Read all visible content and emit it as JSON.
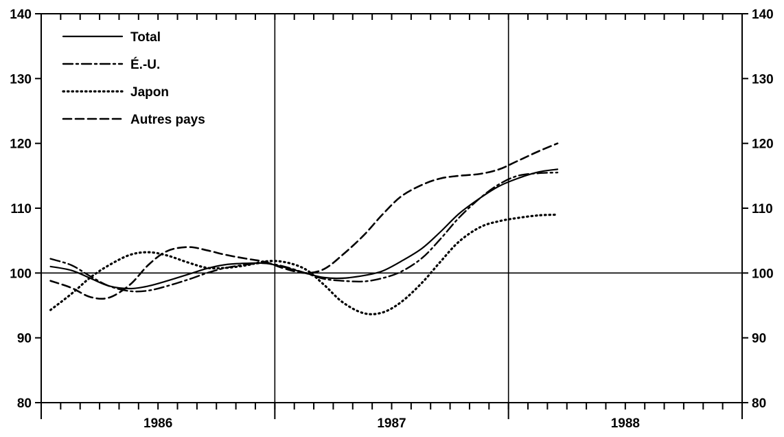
{
  "chart_data": {
    "type": "line",
    "title": "",
    "xlabel": "",
    "ylabel": "",
    "ylim": [
      80,
      140
    ],
    "xlim": [
      1986.0,
      1989.0
    ],
    "grid": false,
    "legend_position": "top-left",
    "yticks": [
      80,
      90,
      100,
      110,
      120,
      130,
      140
    ],
    "year_labels": [
      {
        "label": "1986",
        "x": 1986.5
      },
      {
        "label": "1987",
        "x": 1987.5
      },
      {
        "label": "1988",
        "x": 1988.5
      }
    ],
    "vertical_lines": [
      1987.0,
      1988.0
    ],
    "reference_line": 100,
    "series": [
      {
        "name": "Total",
        "style": "solid",
        "x": [
          1986.04,
          1986.13,
          1986.21,
          1986.29,
          1986.38,
          1986.46,
          1986.54,
          1986.63,
          1986.71,
          1986.79,
          1986.88,
          1986.96,
          1987.04,
          1987.13,
          1987.21,
          1987.29,
          1987.38,
          1987.46,
          1987.54,
          1987.63,
          1987.71,
          1987.79,
          1987.88,
          1987.96,
          1988.04,
          1988.13,
          1988.21
        ],
        "values": [
          101,
          100.4,
          99.2,
          98,
          97.6,
          98,
          98.8,
          99.8,
          100.7,
          101.3,
          101.5,
          101.5,
          100.9,
          100,
          99.3,
          99.2,
          99.6,
          100.3,
          101.8,
          103.8,
          106.4,
          109.2,
          111.6,
          113.4,
          114.6,
          115.6,
          116
        ]
      },
      {
        "name": "É.-U.",
        "style": "dashdot",
        "x": [
          1986.04,
          1986.13,
          1986.21,
          1986.29,
          1986.38,
          1986.46,
          1986.54,
          1986.63,
          1986.71,
          1986.79,
          1986.88,
          1986.96,
          1987.04,
          1987.13,
          1987.21,
          1987.29,
          1987.38,
          1987.46,
          1987.54,
          1987.63,
          1987.71,
          1987.79,
          1987.88,
          1987.96,
          1988.04,
          1988.13,
          1988.21
        ],
        "values": [
          102.2,
          101.2,
          99.5,
          98,
          97.2,
          97.3,
          98,
          99,
          100,
          100.8,
          101.3,
          101.5,
          101,
          100,
          99.1,
          98.8,
          98.7,
          99.2,
          100.2,
          102.3,
          105.3,
          108.6,
          111.6,
          113.7,
          115,
          115.4,
          115.5
        ]
      },
      {
        "name": "Japon",
        "style": "dotted",
        "x": [
          1986.04,
          1986.13,
          1986.21,
          1986.29,
          1986.38,
          1986.46,
          1986.54,
          1986.63,
          1986.71,
          1986.79,
          1986.88,
          1986.96,
          1987.04,
          1987.13,
          1987.21,
          1987.29,
          1987.38,
          1987.46,
          1987.54,
          1987.63,
          1987.71,
          1987.79,
          1987.88,
          1987.96,
          1988.04,
          1988.13,
          1988.21
        ],
        "values": [
          94.3,
          96.8,
          99.3,
          101.2,
          102.8,
          103.2,
          102.7,
          101.6,
          100.8,
          100.8,
          101.2,
          101.8,
          101.7,
          100.6,
          98.2,
          95.5,
          93.8,
          93.9,
          95.5,
          98.5,
          101.8,
          104.9,
          107.1,
          108,
          108.5,
          108.9,
          109
        ]
      },
      {
        "name": "Autres pays",
        "style": "dashed",
        "x": [
          1986.04,
          1986.13,
          1986.21,
          1986.29,
          1986.38,
          1986.46,
          1986.54,
          1986.63,
          1986.71,
          1986.79,
          1986.88,
          1986.96,
          1987.04,
          1987.13,
          1987.21,
          1987.29,
          1987.38,
          1987.46,
          1987.54,
          1987.63,
          1987.71,
          1987.79,
          1987.88,
          1987.96,
          1988.04,
          1988.13,
          1988.21
        ],
        "values": [
          98.8,
          97.7,
          96.3,
          96.2,
          98.2,
          101.3,
          103.4,
          104,
          103.5,
          102.8,
          102.2,
          101.7,
          100.7,
          100,
          100.6,
          102.8,
          105.8,
          109,
          111.8,
          113.6,
          114.6,
          115,
          115.3,
          116,
          117.3,
          118.8,
          120
        ]
      }
    ]
  }
}
